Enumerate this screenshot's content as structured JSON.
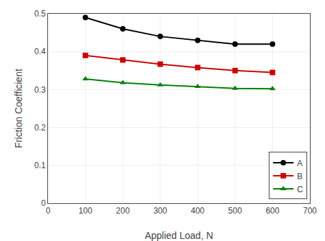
{
  "chart_data": {
    "type": "line",
    "x": [
      100,
      200,
      300,
      400,
      500,
      600
    ],
    "series": [
      {
        "name": "A",
        "color": "#000000",
        "marker": "circle",
        "values": [
          0.49,
          0.46,
          0.44,
          0.43,
          0.42,
          0.42
        ]
      },
      {
        "name": "B",
        "color": "#cc0000",
        "marker": "square",
        "values": [
          0.39,
          0.378,
          0.367,
          0.358,
          0.35,
          0.345
        ]
      },
      {
        "name": "C",
        "color": "#008000",
        "marker": "triangle-up",
        "values": [
          0.328,
          0.318,
          0.312,
          0.308,
          0.303,
          0.302
        ]
      }
    ],
    "xlabel": "Applied Load, N",
    "ylabel": "Friction Coefficient",
    "xlim": [
      0,
      700
    ],
    "ylim": [
      0,
      0.5
    ],
    "xticks": [
      0,
      100,
      200,
      300,
      400,
      500,
      600,
      700
    ],
    "yticks": [
      0,
      0.1,
      0.2,
      0.3,
      0.4,
      0.5
    ],
    "grid": true,
    "legend": "lower right"
  }
}
